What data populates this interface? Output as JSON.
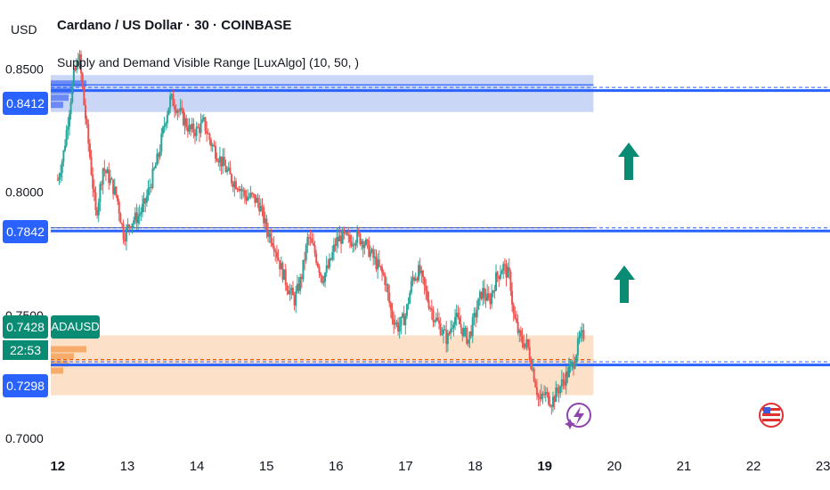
{
  "header": {
    "currency": "USD",
    "title": "Cardano / US Dollar · 30 · COINBASE",
    "indicator": "Supply and Demand Visible Range [LuxAlgo] (10, 50, )"
  },
  "symbol_label": "ADAUSD",
  "price_tags": {
    "supply": "0.8412",
    "mid": "0.7842",
    "last": "0.7428",
    "countdown": "22:53",
    "demand": "0.7298"
  },
  "colors": {
    "up_candle": "#26a69a",
    "down_candle": "#ef5350",
    "supply_zone": "#c9d6f5",
    "demand_zone": "#fde0c8",
    "level_line": "#2962ff",
    "arrow": "#0a8c74",
    "last_price": "#0a8c74"
  },
  "icons": [
    "arrow-up-icon",
    "lightning-icon",
    "us-flag-icon"
  ],
  "chart_data": {
    "type": "candlestick",
    "title": "Cardano / US Dollar · 30 · COINBASE",
    "y_ticks": [
      "0.8500",
      "0.8000",
      "0.7500",
      "0.7000"
    ],
    "x_ticks": [
      "12",
      "13",
      "14",
      "15",
      "16",
      "17",
      "18",
      "19",
      "20",
      "21",
      "22",
      "23"
    ],
    "ylim": [
      0.6935,
      0.8635
    ],
    "xlim": [
      11.9,
      23.1
    ],
    "grid": false,
    "last_price": 0.7428,
    "supply_zone": {
      "top": 0.8475,
      "bottom": 0.8325,
      "level": 0.8412,
      "x_end": 19.7
    },
    "demand_zone": {
      "top": 0.7418,
      "bottom": 0.7175,
      "level": 0.7298,
      "x_end": 19.7
    },
    "horizontal_levels": [
      0.8412,
      0.7842,
      0.7298
    ],
    "mid_level_gray": 0.7855,
    "price_path": [
      [
        12.0,
        0.805
      ],
      [
        12.08,
        0.815
      ],
      [
        12.15,
        0.83
      ],
      [
        12.23,
        0.847
      ],
      [
        12.31,
        0.855
      ],
      [
        12.38,
        0.835
      ],
      [
        12.46,
        0.815
      ],
      [
        12.55,
        0.79
      ],
      [
        12.65,
        0.81
      ],
      [
        12.75,
        0.805
      ],
      [
        12.85,
        0.798
      ],
      [
        12.95,
        0.782
      ],
      [
        13.05,
        0.788
      ],
      [
        13.15,
        0.79
      ],
      [
        13.25,
        0.795
      ],
      [
        13.35,
        0.805
      ],
      [
        13.45,
        0.815
      ],
      [
        13.55,
        0.83
      ],
      [
        13.62,
        0.838
      ],
      [
        13.7,
        0.835
      ],
      [
        13.8,
        0.83
      ],
      [
        13.9,
        0.825
      ],
      [
        14.0,
        0.825
      ],
      [
        14.1,
        0.828
      ],
      [
        14.2,
        0.82
      ],
      [
        14.3,
        0.815
      ],
      [
        14.4,
        0.81
      ],
      [
        14.5,
        0.805
      ],
      [
        14.6,
        0.803
      ],
      [
        14.7,
        0.798
      ],
      [
        14.8,
        0.798
      ],
      [
        14.9,
        0.795
      ],
      [
        15.0,
        0.785
      ],
      [
        15.1,
        0.78
      ],
      [
        15.2,
        0.77
      ],
      [
        15.3,
        0.762
      ],
      [
        15.4,
        0.756
      ],
      [
        15.5,
        0.765
      ],
      [
        15.6,
        0.782
      ],
      [
        15.7,
        0.775
      ],
      [
        15.8,
        0.765
      ],
      [
        15.9,
        0.77
      ],
      [
        16.0,
        0.78
      ],
      [
        16.1,
        0.782
      ],
      [
        16.2,
        0.78
      ],
      [
        16.3,
        0.782
      ],
      [
        16.4,
        0.78
      ],
      [
        16.5,
        0.775
      ],
      [
        16.6,
        0.77
      ],
      [
        16.7,
        0.765
      ],
      [
        16.8,
        0.75
      ],
      [
        16.9,
        0.745
      ],
      [
        17.0,
        0.75
      ],
      [
        17.1,
        0.765
      ],
      [
        17.2,
        0.768
      ],
      [
        17.3,
        0.758
      ],
      [
        17.4,
        0.75
      ],
      [
        17.5,
        0.745
      ],
      [
        17.6,
        0.74
      ],
      [
        17.7,
        0.75
      ],
      [
        17.8,
        0.745
      ],
      [
        17.9,
        0.74
      ],
      [
        18.0,
        0.75
      ],
      [
        18.1,
        0.76
      ],
      [
        18.2,
        0.755
      ],
      [
        18.3,
        0.765
      ],
      [
        18.4,
        0.77
      ],
      [
        18.5,
        0.765
      ],
      [
        18.55,
        0.75
      ],
      [
        18.65,
        0.74
      ],
      [
        18.75,
        0.738
      ],
      [
        18.85,
        0.725
      ],
      [
        18.92,
        0.715
      ],
      [
        19.0,
        0.718
      ],
      [
        19.1,
        0.715
      ],
      [
        19.2,
        0.72
      ],
      [
        19.3,
        0.725
      ],
      [
        19.4,
        0.73
      ],
      [
        19.5,
        0.74
      ],
      [
        19.58,
        0.7428
      ]
    ]
  }
}
